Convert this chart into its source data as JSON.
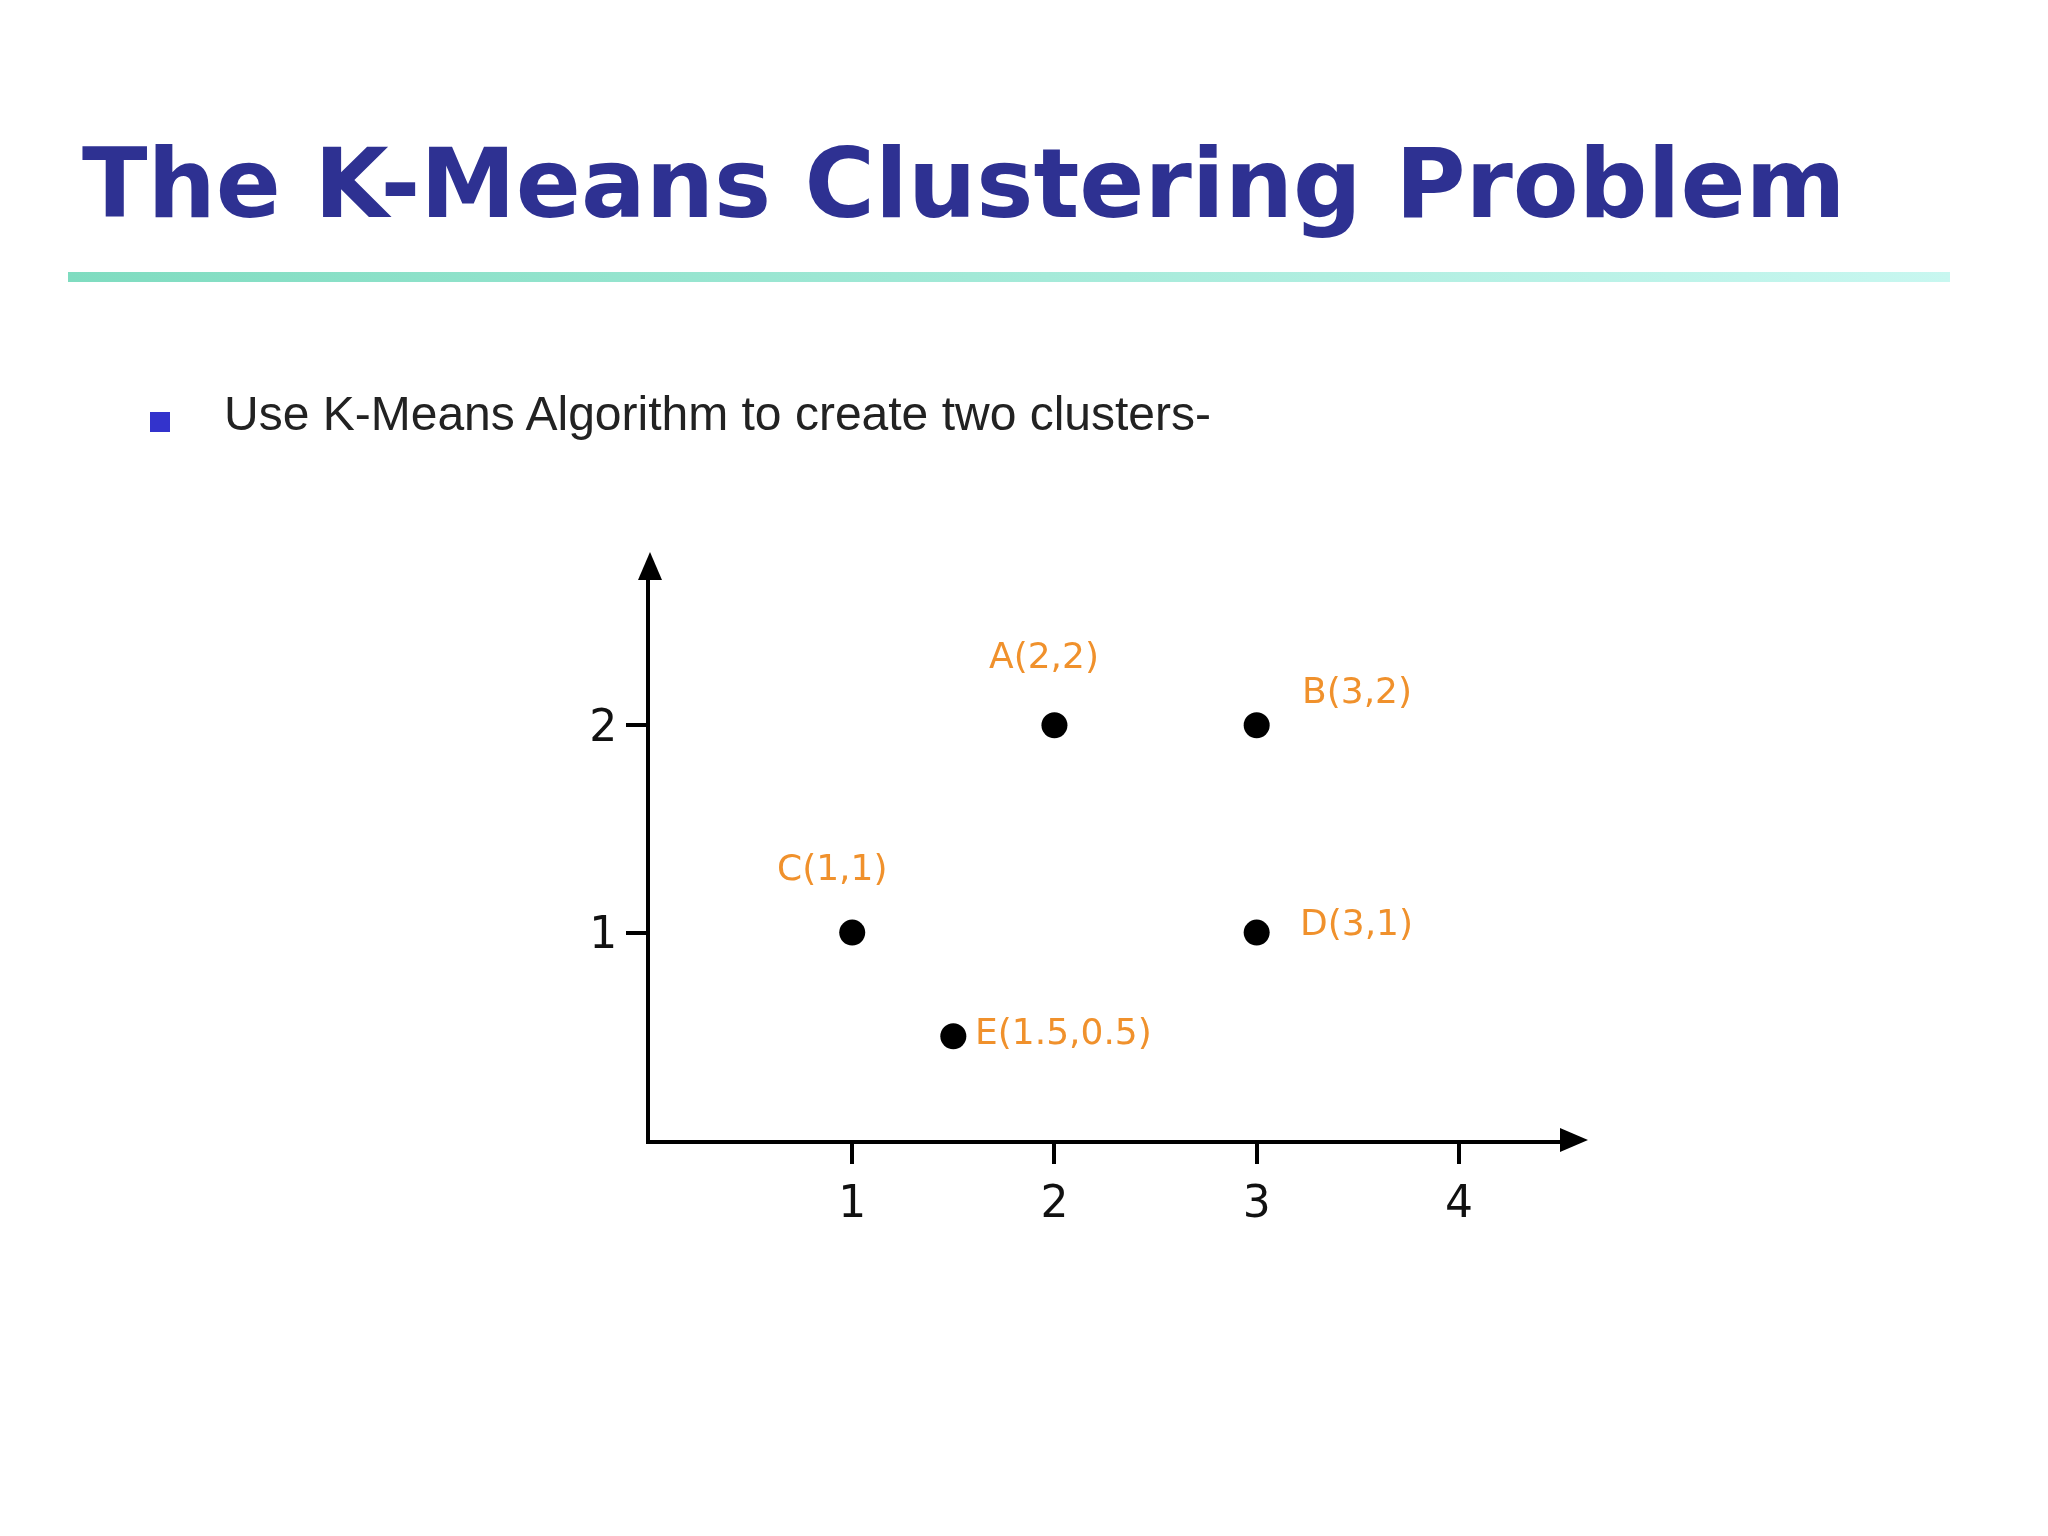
{
  "chart_data": {
    "type": "scatter",
    "title": "The K-Means Clustering Problem",
    "subtitle": "Use K-Means Algorithm to create two clusters-",
    "x": [
      2,
      3,
      1,
      3,
      1.5
    ],
    "series": [
      {
        "color": "#000000",
        "values": [
          2,
          2,
          1,
          1,
          0.5
        ]
      }
    ],
    "annotations": [
      {
        "text": "A(2,2)",
        "x": 2,
        "y": 2
      },
      {
        "text": "B(3,2)",
        "x": 3,
        "y": 2
      },
      {
        "text": "C(1,1)",
        "x": 1,
        "y": 1
      },
      {
        "text": "D(3,1)",
        "x": 3,
        "y": 1
      },
      {
        "text": "E(1.5,0.5)",
        "x": 1.5,
        "y": 0.5
      }
    ],
    "xlim": [
      0,
      4.5
    ],
    "ylim": [
      0,
      2.7
    ],
    "xticks": [
      1,
      2,
      3,
      4
    ],
    "yticks": [
      1,
      2
    ],
    "marker": "circle"
  }
}
